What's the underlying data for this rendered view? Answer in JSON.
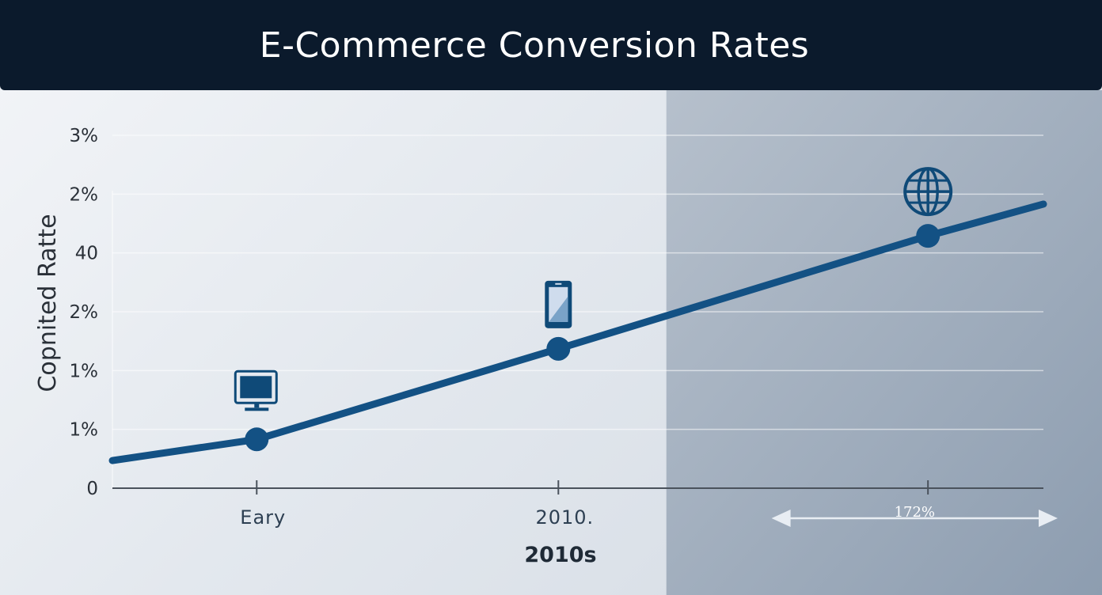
{
  "title": "E-Commerce Conversion Rates",
  "colors": {
    "header_bg": "#0b1a2c",
    "line": "#135184",
    "icon": "#0f4a78",
    "shaded_region": "#8fa0b4"
  },
  "chart_data": {
    "type": "line",
    "title": "E-Commerce Conversion Rates",
    "ylabel": "Copnited Ratte",
    "xlabel": "2010s",
    "yticks": [
      "0",
      "1%",
      "1%",
      "2%",
      "40",
      "2%",
      "3%"
    ],
    "ylim": [
      0,
      6
    ],
    "xlim": [
      0,
      1
    ],
    "categories": [
      {
        "label": "Eary",
        "x": 0.155
      },
      {
        "label": "2010.",
        "x": 0.479
      },
      {
        "label": "",
        "x": 0.876
      }
    ],
    "series": [
      {
        "points": [
          {
            "x": 0.0,
            "y": 0.47
          },
          {
            "x": 0.155,
            "y": 0.83
          },
          {
            "x": 0.479,
            "y": 2.37
          },
          {
            "x": 0.876,
            "y": 4.29
          },
          {
            "x": 1.0,
            "y": 4.83
          }
        ],
        "markers_at": [
          1,
          2,
          3
        ]
      }
    ],
    "icons": [
      {
        "name": "desktop-monitor-icon",
        "at_marker": 1
      },
      {
        "name": "smartphone-icon",
        "at_marker": 2
      },
      {
        "name": "globe-icon",
        "at_marker": 3
      }
    ],
    "annotation": {
      "label": "172%",
      "type": "double-arrow",
      "x_from": 0.725,
      "x_to": 1.0
    },
    "shaded_region": {
      "x_from": 0.595,
      "x_to": 1.0
    },
    "grid": true
  }
}
